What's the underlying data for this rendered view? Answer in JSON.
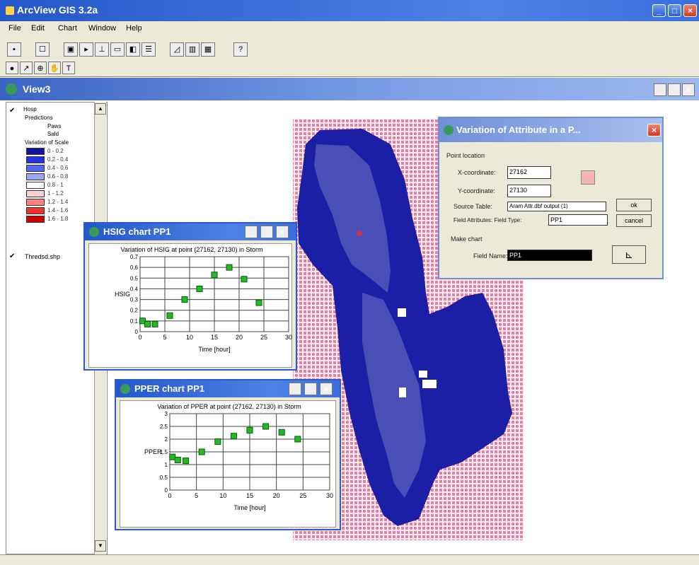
{
  "app": {
    "title": "ArcView GIS 3.2a"
  },
  "menu": [
    "File",
    "Edit",
    "Chart",
    "Window",
    "Help"
  ],
  "view": {
    "title": "View3"
  },
  "legend": {
    "themes": [
      {
        "name": "Hosp",
        "sub": "Predictions",
        "items": [
          "Paws",
          "Sald"
        ]
      },
      {
        "name": "Variation of Scale"
      }
    ],
    "classes": [
      "0 - 0.2",
      "0.2 - 0.4",
      "0.4 - 0.6",
      "0.6 - 0.8",
      "0.8 - 1",
      "1 - 1.2",
      "1.2 - 1.4",
      "1.4 - 1.6",
      "1.6 - 1.8"
    ],
    "class_colors": [
      "#0f13a0",
      "#2233e6",
      "#5566ee",
      "#9aa8f2",
      "#ffffff",
      "#ffd0d0",
      "#ff8080",
      "#ee3333",
      "#cc0000"
    ],
    "second_theme": "Thredsd.shp"
  },
  "variation_dialog": {
    "title": "Variation of Attribute in a P...",
    "group_label": "Point location",
    "x_label": "X-coordinate:",
    "x_value": "27162",
    "y_label": "Y-coordinate:",
    "y_value": "27130",
    "source_label": "Source Table:",
    "source_value": "Aram Attr.dbf output (1)",
    "field_label": "Field Attributes: Field Type:",
    "field_value": "PP1",
    "ok_label": "ok",
    "cancel_label": "cancel",
    "chart_group_label": "Make chart",
    "field_name_label": "Field Name:",
    "field_name_value": "PP1"
  },
  "hsig_window": {
    "title": "HSIG chart PP1",
    "chart_title": "Variation of HSIG at point (27162, 27130) in Storm",
    "ylabel": "HSIG",
    "xlabel": "Time [hour]"
  },
  "pper_window": {
    "title": "PPER chart PP1",
    "chart_title": "Variation of PPER at point (27162, 27130) in Storm",
    "ylabel": "PPER",
    "xlabel": "Time [hour]"
  },
  "chart_data": [
    {
      "type": "line",
      "title": "Variation of HSIG at point (27162, 27130) in Storm",
      "xlabel": "Time [hour]",
      "ylabel": "HSIG",
      "xlim": [
        0,
        30
      ],
      "ylim": [
        0,
        0.7
      ],
      "xticks": [
        "0",
        "5",
        "10",
        "15",
        "20",
        "25",
        "30"
      ],
      "yticks": [
        "0",
        "0.1",
        "0.2",
        "0.3",
        "0.4",
        "0.5",
        "0.6",
        "0.7"
      ],
      "grid": true,
      "color": "#22bb22",
      "x": [
        0.5,
        1.5,
        3,
        6,
        9,
        12,
        15,
        18,
        21,
        24
      ],
      "y": [
        0.1,
        0.07,
        0.07,
        0.15,
        0.3,
        0.4,
        0.53,
        0.6,
        0.49,
        0.27
      ]
    },
    {
      "type": "line",
      "title": "Variation of PPER at point (27162, 27130) in Storm",
      "xlabel": "Time [hour]",
      "ylabel": "PPER",
      "xlim": [
        0,
        30
      ],
      "ylim": [
        0,
        3
      ],
      "xticks": [
        "0",
        "5",
        "10",
        "15",
        "20",
        "25",
        "30"
      ],
      "yticks": [
        "0",
        "0.5",
        "1",
        "1.5",
        "2",
        "2.5",
        "3"
      ],
      "grid": true,
      "color": "#22bb22",
      "x": [
        0.5,
        1.5,
        3,
        6,
        9,
        12,
        15,
        18,
        21,
        24
      ],
      "y": [
        1.3,
        1.18,
        1.15,
        1.5,
        1.9,
        2.12,
        2.35,
        2.5,
        2.27,
        2.0
      ]
    }
  ]
}
